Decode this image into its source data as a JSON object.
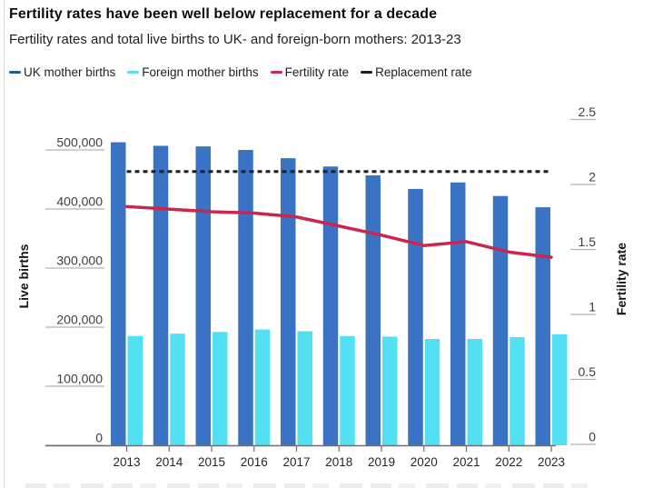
{
  "header": {
    "title": "Fertility rates have been well below replacement for a decade",
    "subtitle": "Fertility rates and total live births to UK- and foreign-born mothers: 2013-23"
  },
  "legend": {
    "items": [
      {
        "label": "UK mother births",
        "color": "#1f5996"
      },
      {
        "label": "Foreign mother births",
        "color": "#53e0f2"
      },
      {
        "label": "Fertility rate",
        "color": "#c9274e"
      },
      {
        "label": "Replacement rate",
        "color": "#1f1f1f"
      }
    ]
  },
  "chart_data": {
    "type": "bar",
    "subtype": "grouped bars with dual-axis lines",
    "title": "Fertility rates have been well below replacement for a decade",
    "subtitle": "Fertility rates and total live births to UK- and foreign-born mothers: 2013-23",
    "categories": [
      "2013",
      "2014",
      "2015",
      "2016",
      "2017",
      "2018",
      "2019",
      "2020",
      "2021",
      "2022",
      "2023"
    ],
    "series": [
      {
        "name": "UK mother births",
        "type": "bar",
        "axis": "left",
        "color": "#3a73c4",
        "values": [
          513000,
          507000,
          506000,
          500000,
          486000,
          472000,
          457000,
          434000,
          445000,
          422000,
          403000
        ]
      },
      {
        "name": "Foreign mother births",
        "type": "bar",
        "axis": "left",
        "color": "#53e0f2",
        "values": [
          185000,
          189000,
          192000,
          196000,
          193000,
          185000,
          184000,
          180000,
          180000,
          183000,
          188000
        ]
      },
      {
        "name": "Fertility rate",
        "type": "line",
        "axis": "right",
        "color": "#c9274e",
        "values": [
          1.83,
          1.81,
          1.79,
          1.78,
          1.75,
          1.68,
          1.61,
          1.53,
          1.56,
          1.48,
          1.44
        ]
      },
      {
        "name": "Replacement rate",
        "type": "dashed-line",
        "axis": "right",
        "color": "#1f1f1f",
        "value": 2.1
      }
    ],
    "left_axis": {
      "label": "Live births",
      "range": [
        0,
        550000
      ],
      "grid": false,
      "tick_values": [
        0,
        100000,
        200000,
        300000,
        400000,
        500000
      ],
      "tick_labels": [
        "0",
        "100,000",
        "200,000",
        "300,000",
        "400,000",
        "500,000"
      ]
    },
    "right_axis": {
      "label": "Fertility rate",
      "range": [
        0,
        2.5
      ],
      "tick_values": [
        0,
        0.5,
        1,
        1.5,
        2,
        2.5
      ],
      "tick_labels": [
        "0",
        "0.5",
        "1",
        "1.5",
        "2",
        "2.5"
      ]
    },
    "legend_position": "top"
  }
}
